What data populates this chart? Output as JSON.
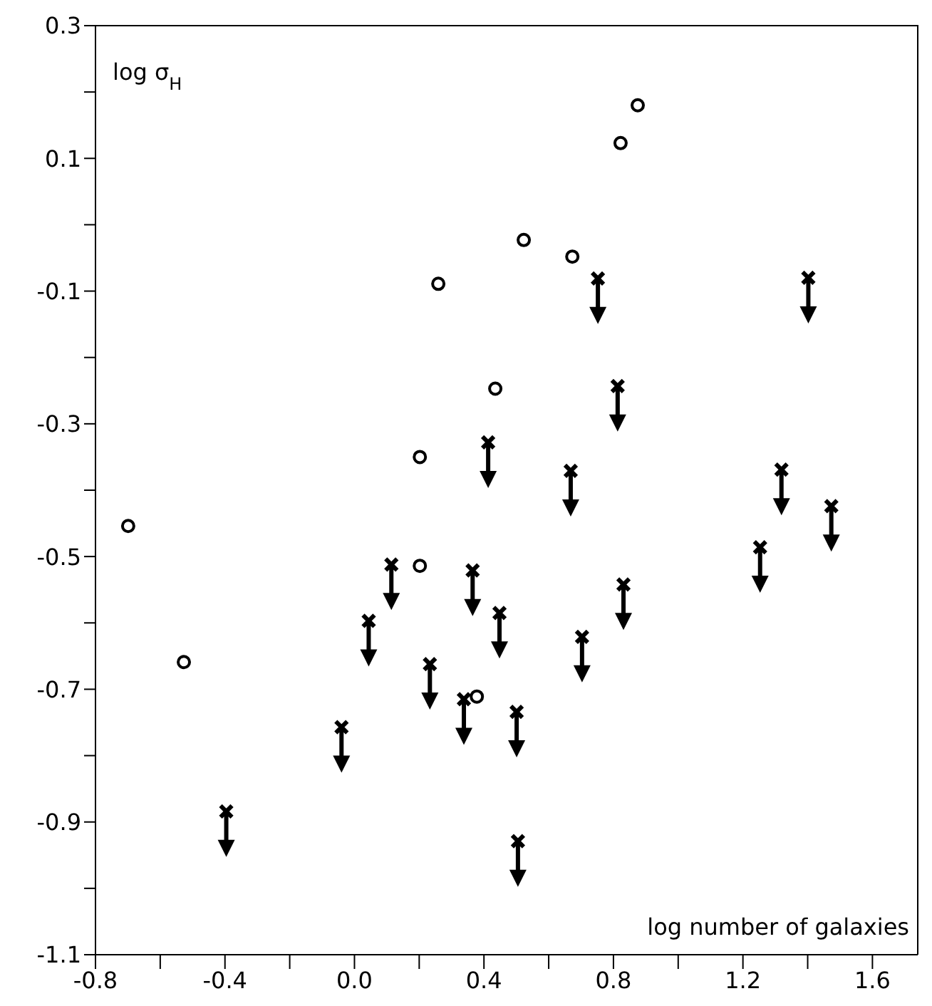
{
  "chart_data": {
    "type": "scatter",
    "xlabel": "log number of galaxies",
    "ylabel": "log σ$_{H}$",
    "xlim": [
      -0.8,
      1.74
    ],
    "ylim": [
      -1.1,
      0.3
    ],
    "xticks": [
      -0.8,
      {
        "value": -0.6,
        "label": null
      },
      -0.4,
      {
        "value": -0.2,
        "label": null
      },
      {
        "value": 0,
        "label": "0.0"
      },
      {
        "value": 0.2,
        "label": null
      },
      0.4,
      {
        "value": 0.6,
        "label": null
      },
      0.8,
      {
        "value": 1.0,
        "label": null
      },
      1.2,
      {
        "value": 1.4,
        "label": null
      },
      1.6
    ],
    "yticks": [
      {
        "value": -1.1,
        "label": "-1.1"
      },
      {
        "value": -1.0,
        "label": null
      },
      -0.9,
      {
        "value": -0.8,
        "label": null
      },
      -0.7,
      {
        "value": -0.6,
        "label": null
      },
      -0.5,
      {
        "value": -0.4,
        "label": null
      },
      -0.3,
      {
        "value": -0.2,
        "label": null
      },
      -0.1,
      {
        "value": 0,
        "label": null
      },
      0.1,
      {
        "value": 0.2,
        "label": null
      },
      0.3
    ],
    "series": [
      {
        "color": "#000000",
        "marker": "circle",
        "x": [
          -0.699,
          -0.527,
          0.259,
          0.523,
          0.673,
          0.435,
          0.202,
          0.202,
          0.378,
          0.822,
          0.875
        ],
        "values": [
          -0.454,
          -0.659,
          -0.089,
          -0.023,
          -0.048,
          -0.247,
          -0.35,
          -0.514,
          -0.711,
          0.123,
          0.18
        ]
      },
      {
        "color": "#000000",
        "marker": "cross",
        "x": [
          0.752,
          0.813,
          0.413,
          0.668,
          0.114,
          0.365,
          0.831,
          0.448,
          0.044,
          0.233,
          0.338,
          0.501,
          0.703,
          -0.04,
          -0.396,
          0.505,
          1.402,
          1.319,
          1.473,
          1.253
        ],
        "values": [
          -0.081,
          -0.243,
          -0.328,
          -0.371,
          -0.512,
          -0.521,
          -0.542,
          -0.585,
          -0.597,
          -0.662,
          -0.715,
          -0.734,
          -0.621,
          -0.757,
          -0.884,
          -0.929,
          -0.08,
          -0.369,
          -0.424,
          -0.486
        ]
      }
    ]
  }
}
